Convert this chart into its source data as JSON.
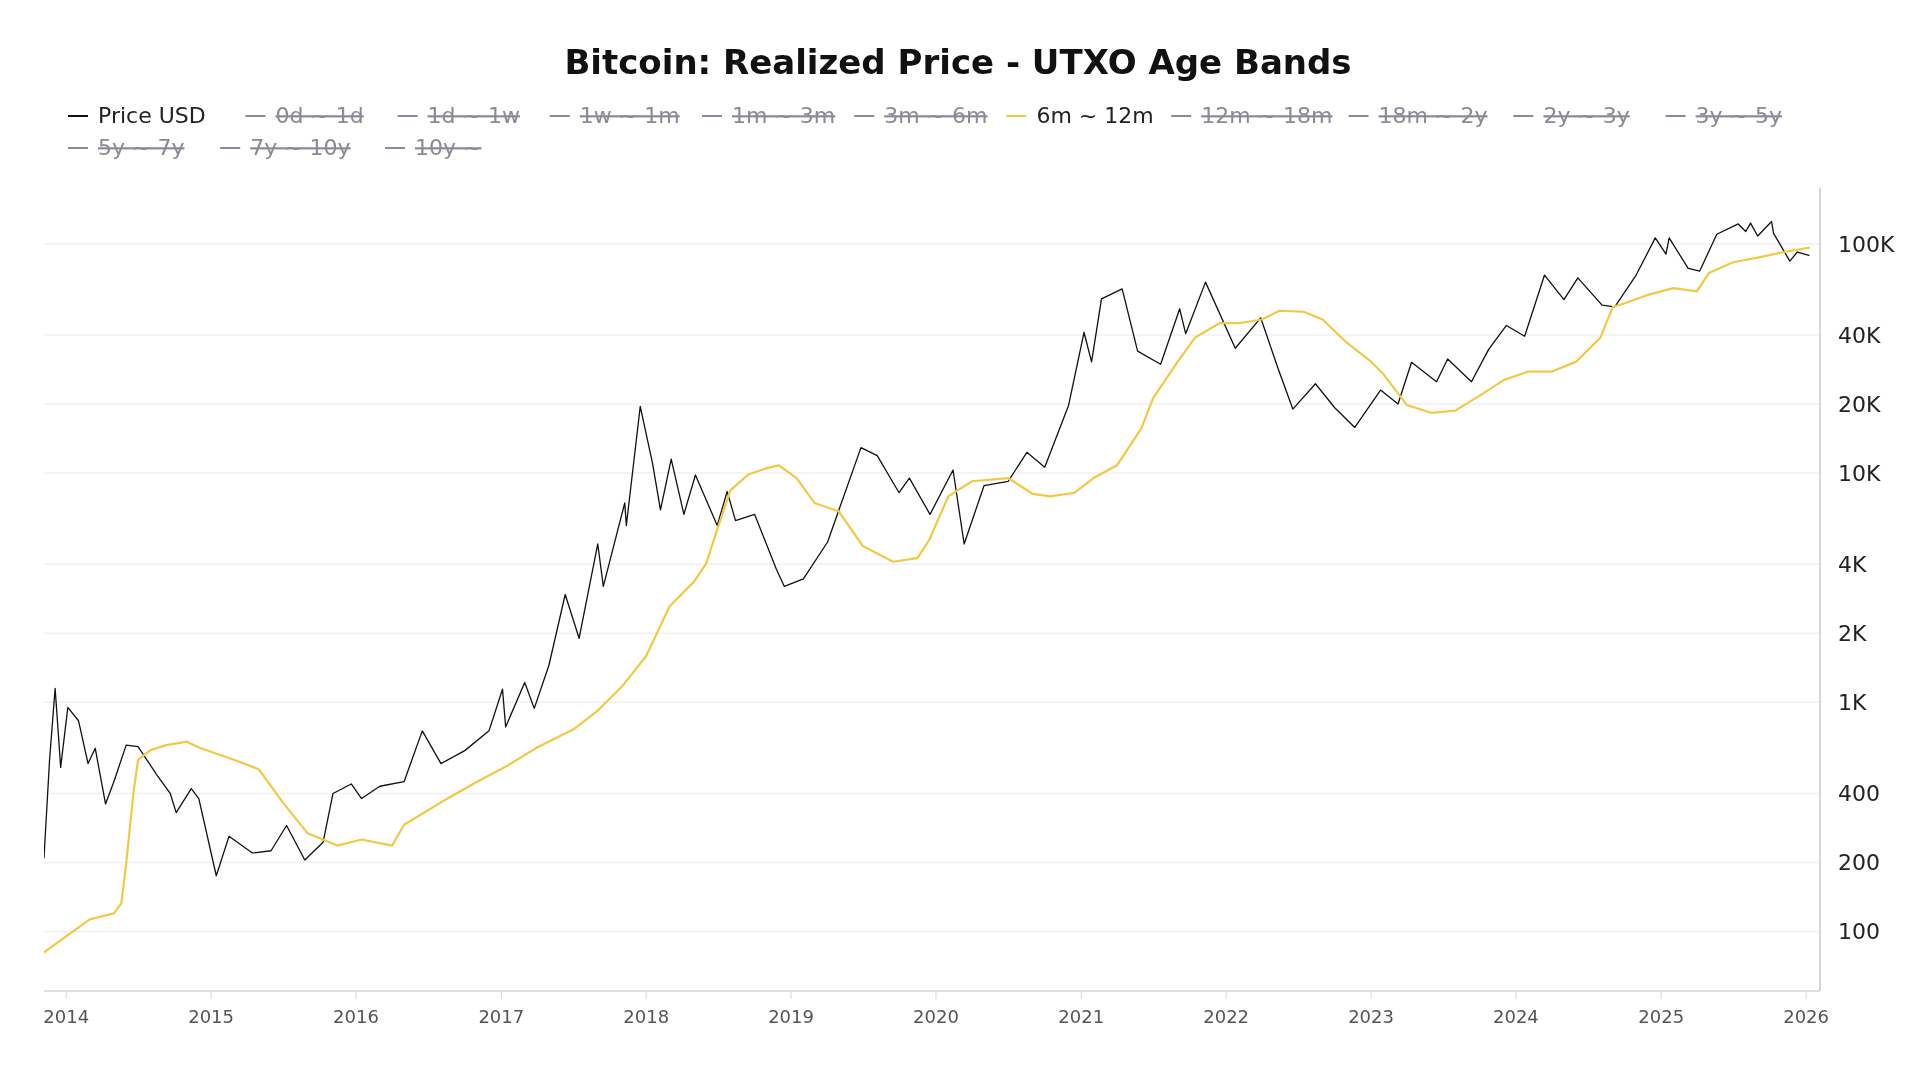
{
  "chart_data": {
    "type": "line",
    "title": "Bitcoin: Realized Price - UTXO Age Bands",
    "log": "y",
    "grid": "y",
    "legend": "top left",
    "marker": "none",
    "line_style": "solid",
    "xlim": [
      "2013-11-06",
      "2026-02-05"
    ],
    "ylim": [
      55,
      175000
    ],
    "xticks": [
      "2014",
      "2015",
      "2016",
      "2017",
      "2018",
      "2019",
      "2020",
      "2021",
      "2022",
      "2023",
      "2024",
      "2025",
      "2026"
    ],
    "yticks": [
      100,
      200,
      400,
      {
        "value": 1000,
        "label": "1K"
      },
      {
        "value": 2000,
        "label": "2K"
      },
      {
        "value": 4000,
        "label": "4K"
      },
      {
        "value": 10000,
        "label": "10K"
      },
      {
        "value": 20000,
        "label": "20K"
      },
      {
        "value": 40000,
        "label": "40K"
      },
      {
        "value": 100000,
        "label": "100K"
      }
    ],
    "series": [
      {
        "name": "Price USD",
        "color": "#111111",
        "x": [
          "2013-11-06",
          "2013-11-20",
          "2013-12-04",
          "2013-12-18",
          "2014-01-05",
          "2014-02-01",
          "2014-02-25",
          "2014-03-15",
          "2014-04-10",
          "2014-05-01",
          "2014-06-01",
          "2014-07-01",
          "2014-08-18",
          "2014-09-20",
          "2014-10-05",
          "2014-11-12",
          "2014-12-01",
          "2015-01-14",
          "2015-02-15",
          "2015-04-15",
          "2015-06-01",
          "2015-07-10",
          "2015-08-25",
          "2015-10-10",
          "2015-11-04",
          "2015-12-20",
          "2016-01-15",
          "2016-03-01",
          "2016-05-01",
          "2016-06-16",
          "2016-08-02",
          "2016-10-01",
          "2016-12-01",
          "2017-01-04",
          "2017-01-12",
          "2017-03-01",
          "2017-03-25",
          "2017-05-01",
          "2017-06-11",
          "2017-07-16",
          "2017-09-01",
          "2017-09-15",
          "2017-11-08",
          "2017-11-12",
          "2017-12-17",
          "2018-01-17",
          "2018-02-06",
          "2018-03-05",
          "2018-04-06",
          "2018-05-05",
          "2018-06-29",
          "2018-07-24",
          "2018-08-14",
          "2018-10-01",
          "2018-11-25",
          "2018-12-15",
          "2019-02-01",
          "2019-04-03",
          "2019-06-26",
          "2019-08-06",
          "2019-09-30",
          "2019-10-26",
          "2019-12-17",
          "2020-02-13",
          "2020-03-12",
          "2020-05-01",
          "2020-07-01",
          "2020-08-17",
          "2020-10-01",
          "2020-11-30",
          "2021-01-08",
          "2021-01-27",
          "2021-02-21",
          "2021-04-14",
          "2021-05-23",
          "2021-07-20",
          "2021-09-06",
          "2021-09-21",
          "2021-11-10",
          "2022-01-24",
          "2022-03-29",
          "2022-05-12",
          "2022-06-18",
          "2022-08-14",
          "2022-10-01",
          "2022-11-21",
          "2023-01-25",
          "2023-03-10",
          "2023-04-13",
          "2023-06-15",
          "2023-07-13",
          "2023-09-11",
          "2023-10-24",
          "2023-12-08",
          "2024-01-23",
          "2024-03-13",
          "2024-05-01",
          "2024-06-05",
          "2024-08-05",
          "2024-09-06",
          "2024-10-29",
          "2024-12-17",
          "2025-01-13",
          "2025-01-21",
          "2025-03-10",
          "2025-04-08",
          "2025-05-21",
          "2025-07-14",
          "2025-08-02",
          "2025-08-14",
          "2025-09-01",
          "2025-10-06",
          "2025-10-11",
          "2025-11-21",
          "2025-12-10",
          "2026-01-08"
        ],
        "values": [
          210,
          560,
          1150,
          520,
          950,
          830,
          540,
          630,
          360,
          450,
          650,
          640,
          480,
          400,
          330,
          420,
          380,
          175,
          260,
          220,
          225,
          290,
          205,
          245,
          400,
          440,
          380,
          430,
          450,
          750,
          540,
          615,
          750,
          1140,
          780,
          1220,
          940,
          1450,
          2950,
          1900,
          4900,
          3200,
          7400,
          5900,
          19500,
          11000,
          6900,
          11500,
          6600,
          9800,
          5900,
          8300,
          6200,
          6600,
          3800,
          3200,
          3450,
          5000,
          12900,
          11900,
          8200,
          9500,
          6600,
          10300,
          4900,
          8800,
          9200,
          12300,
          10600,
          19700,
          41000,
          30500,
          57500,
          63500,
          34000,
          29800,
          52000,
          40500,
          68000,
          35000,
          47500,
          28500,
          19000,
          24500,
          19300,
          15800,
          23000,
          20000,
          30400,
          25000,
          31400,
          25000,
          34500,
          44000,
          39500,
          73000,
          57000,
          71000,
          54000,
          53000,
          72500,
          106000,
          90000,
          106000,
          78000,
          76000,
          110000,
          122000,
          113000,
          123000,
          108000,
          125000,
          111000,
          84000,
          92000,
          89000
        ]
      },
      {
        "name": "0d ~ 1d",
        "color": "#8a8a99"
      },
      {
        "name": "1d ~ 1w",
        "color": "#8a8a99"
      },
      {
        "name": "1w ~ 1m",
        "color": "#8a8a99"
      },
      {
        "name": "1m ~ 3m",
        "color": "#8a8a99"
      },
      {
        "name": "3m ~ 6m",
        "color": "#8a8a99"
      },
      {
        "name": "6m ~ 12m",
        "color": "#f0c945",
        "x": [
          "2013-11-06",
          "2014-03-01",
          "2014-05-01",
          "2014-05-20",
          "2014-06-01",
          "2014-06-20",
          "2014-07-01",
          "2014-08-01",
          "2014-09-10",
          "2014-11-01",
          "2014-12-01",
          "2015-03-01",
          "2015-05-01",
          "2015-07-01",
          "2015-09-01",
          "2015-11-15",
          "2016-01-15",
          "2016-04-01",
          "2016-05-01",
          "2016-08-01",
          "2016-11-01",
          "2017-01-15",
          "2017-04-01",
          "2017-07-01",
          "2017-09-01",
          "2017-11-01",
          "2018-01-01",
          "2018-03-01",
          "2018-05-01",
          "2018-06-01",
          "2018-07-01",
          "2018-08-01",
          "2018-09-15",
          "2018-11-01",
          "2018-12-01",
          "2019-01-15",
          "2019-03-01",
          "2019-05-01",
          "2019-07-01",
          "2019-09-15",
          "2019-11-15",
          "2019-12-15",
          "2020-02-01",
          "2020-04-01",
          "2020-07-01",
          "2020-09-01",
          "2020-10-15",
          "2020-12-15",
          "2021-02-01",
          "2021-04-01",
          "2021-06-01",
          "2021-07-01",
          "2021-09-01",
          "2021-10-15",
          "2021-12-15",
          "2022-02-01",
          "2022-04-01",
          "2022-05-15",
          "2022-07-15",
          "2022-09-01",
          "2022-11-01",
          "2023-01-01",
          "2023-02-01",
          "2023-04-01",
          "2023-06-01",
          "2023-08-01",
          "2023-10-01",
          "2023-12-01",
          "2024-02-01",
          "2024-04-01",
          "2024-06-01",
          "2024-08-01",
          "2024-09-01",
          "2024-10-01",
          "2024-12-01",
          "2025-02-01",
          "2025-04-01",
          "2025-05-01",
          "2025-07-01",
          "2025-09-01",
          "2025-11-01",
          "2026-01-08"
        ],
        "values": [
          81,
          113,
          120,
          133,
          197,
          412,
          560,
          618,
          650,
          673,
          635,
          560,
          510,
          365,
          268,
          237,
          252,
          237,
          292,
          365,
          450,
          527,
          635,
          760,
          920,
          1170,
          1590,
          2620,
          3350,
          4020,
          5800,
          8400,
          9840,
          10500,
          10800,
          9500,
          7400,
          6800,
          4800,
          4100,
          4250,
          5100,
          7900,
          9200,
          9500,
          8100,
          7900,
          8200,
          9500,
          10800,
          15600,
          21200,
          30600,
          39000,
          45000,
          45000,
          46700,
          51000,
          50500,
          46700,
          37000,
          30600,
          27000,
          19800,
          18300,
          18700,
          21700,
          25400,
          27700,
          27700,
          30600,
          39000,
          53000,
          55000,
          60000,
          64000,
          62000,
          74500,
          83000,
          87000,
          91600,
          96000
        ]
      },
      {
        "name": "12m ~ 18m",
        "color": "#8a8a99"
      },
      {
        "name": "18m ~ 2y",
        "color": "#8a8a99"
      },
      {
        "name": "2y ~ 3y",
        "color": "#8a8a99"
      },
      {
        "name": "3y ~ 5y",
        "color": "#8a8a99"
      },
      {
        "name": "5y ~ 7y",
        "color": "#8a8a99"
      },
      {
        "name": "7y ~ 10y",
        "color": "#8a8a99"
      },
      {
        "name": "10y ~",
        "color": "#8a8a99"
      }
    ]
  }
}
